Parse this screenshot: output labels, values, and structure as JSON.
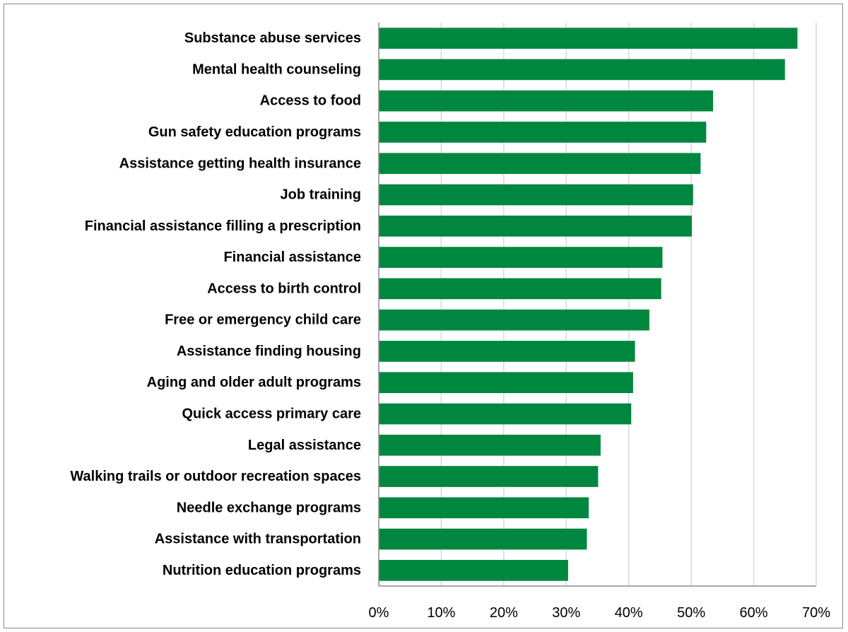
{
  "chart_data": {
    "type": "bar",
    "orientation": "horizontal",
    "categories": [
      "Substance abuse services",
      "Mental health counseling",
      "Access to food",
      "Gun safety education programs",
      "Assistance getting health insurance",
      "Job training",
      "Financial assistance filling a prescription",
      "Financial assistance",
      "Access to birth control",
      "Free or emergency child care",
      "Assistance finding housing",
      "Aging and older adult programs",
      "Quick access primary care",
      "Legal assistance",
      "Walking trails or outdoor recreation spaces",
      "Needle exchange programs",
      "Assistance with transportation",
      "Nutrition education programs"
    ],
    "values": [
      67,
      65,
      53.5,
      52.4,
      51.5,
      50.3,
      50.1,
      45.4,
      45.2,
      43.3,
      41,
      40.7,
      40.4,
      35.5,
      35.1,
      33.6,
      33.3,
      30.3
    ],
    "xlim": [
      0,
      70
    ],
    "x_ticks": [
      0,
      10,
      20,
      30,
      40,
      50,
      60,
      70
    ],
    "x_tick_labels": [
      "0%",
      "10%",
      "20%",
      "30%",
      "40%",
      "50%",
      "60%",
      "70%"
    ],
    "grid": "vertical",
    "legend": "none",
    "title": "",
    "xlabel": "",
    "ylabel": "",
    "bar_color": "#00873f",
    "grid_color": "#d9d9d9",
    "axis_color": "#8c8c8c"
  }
}
